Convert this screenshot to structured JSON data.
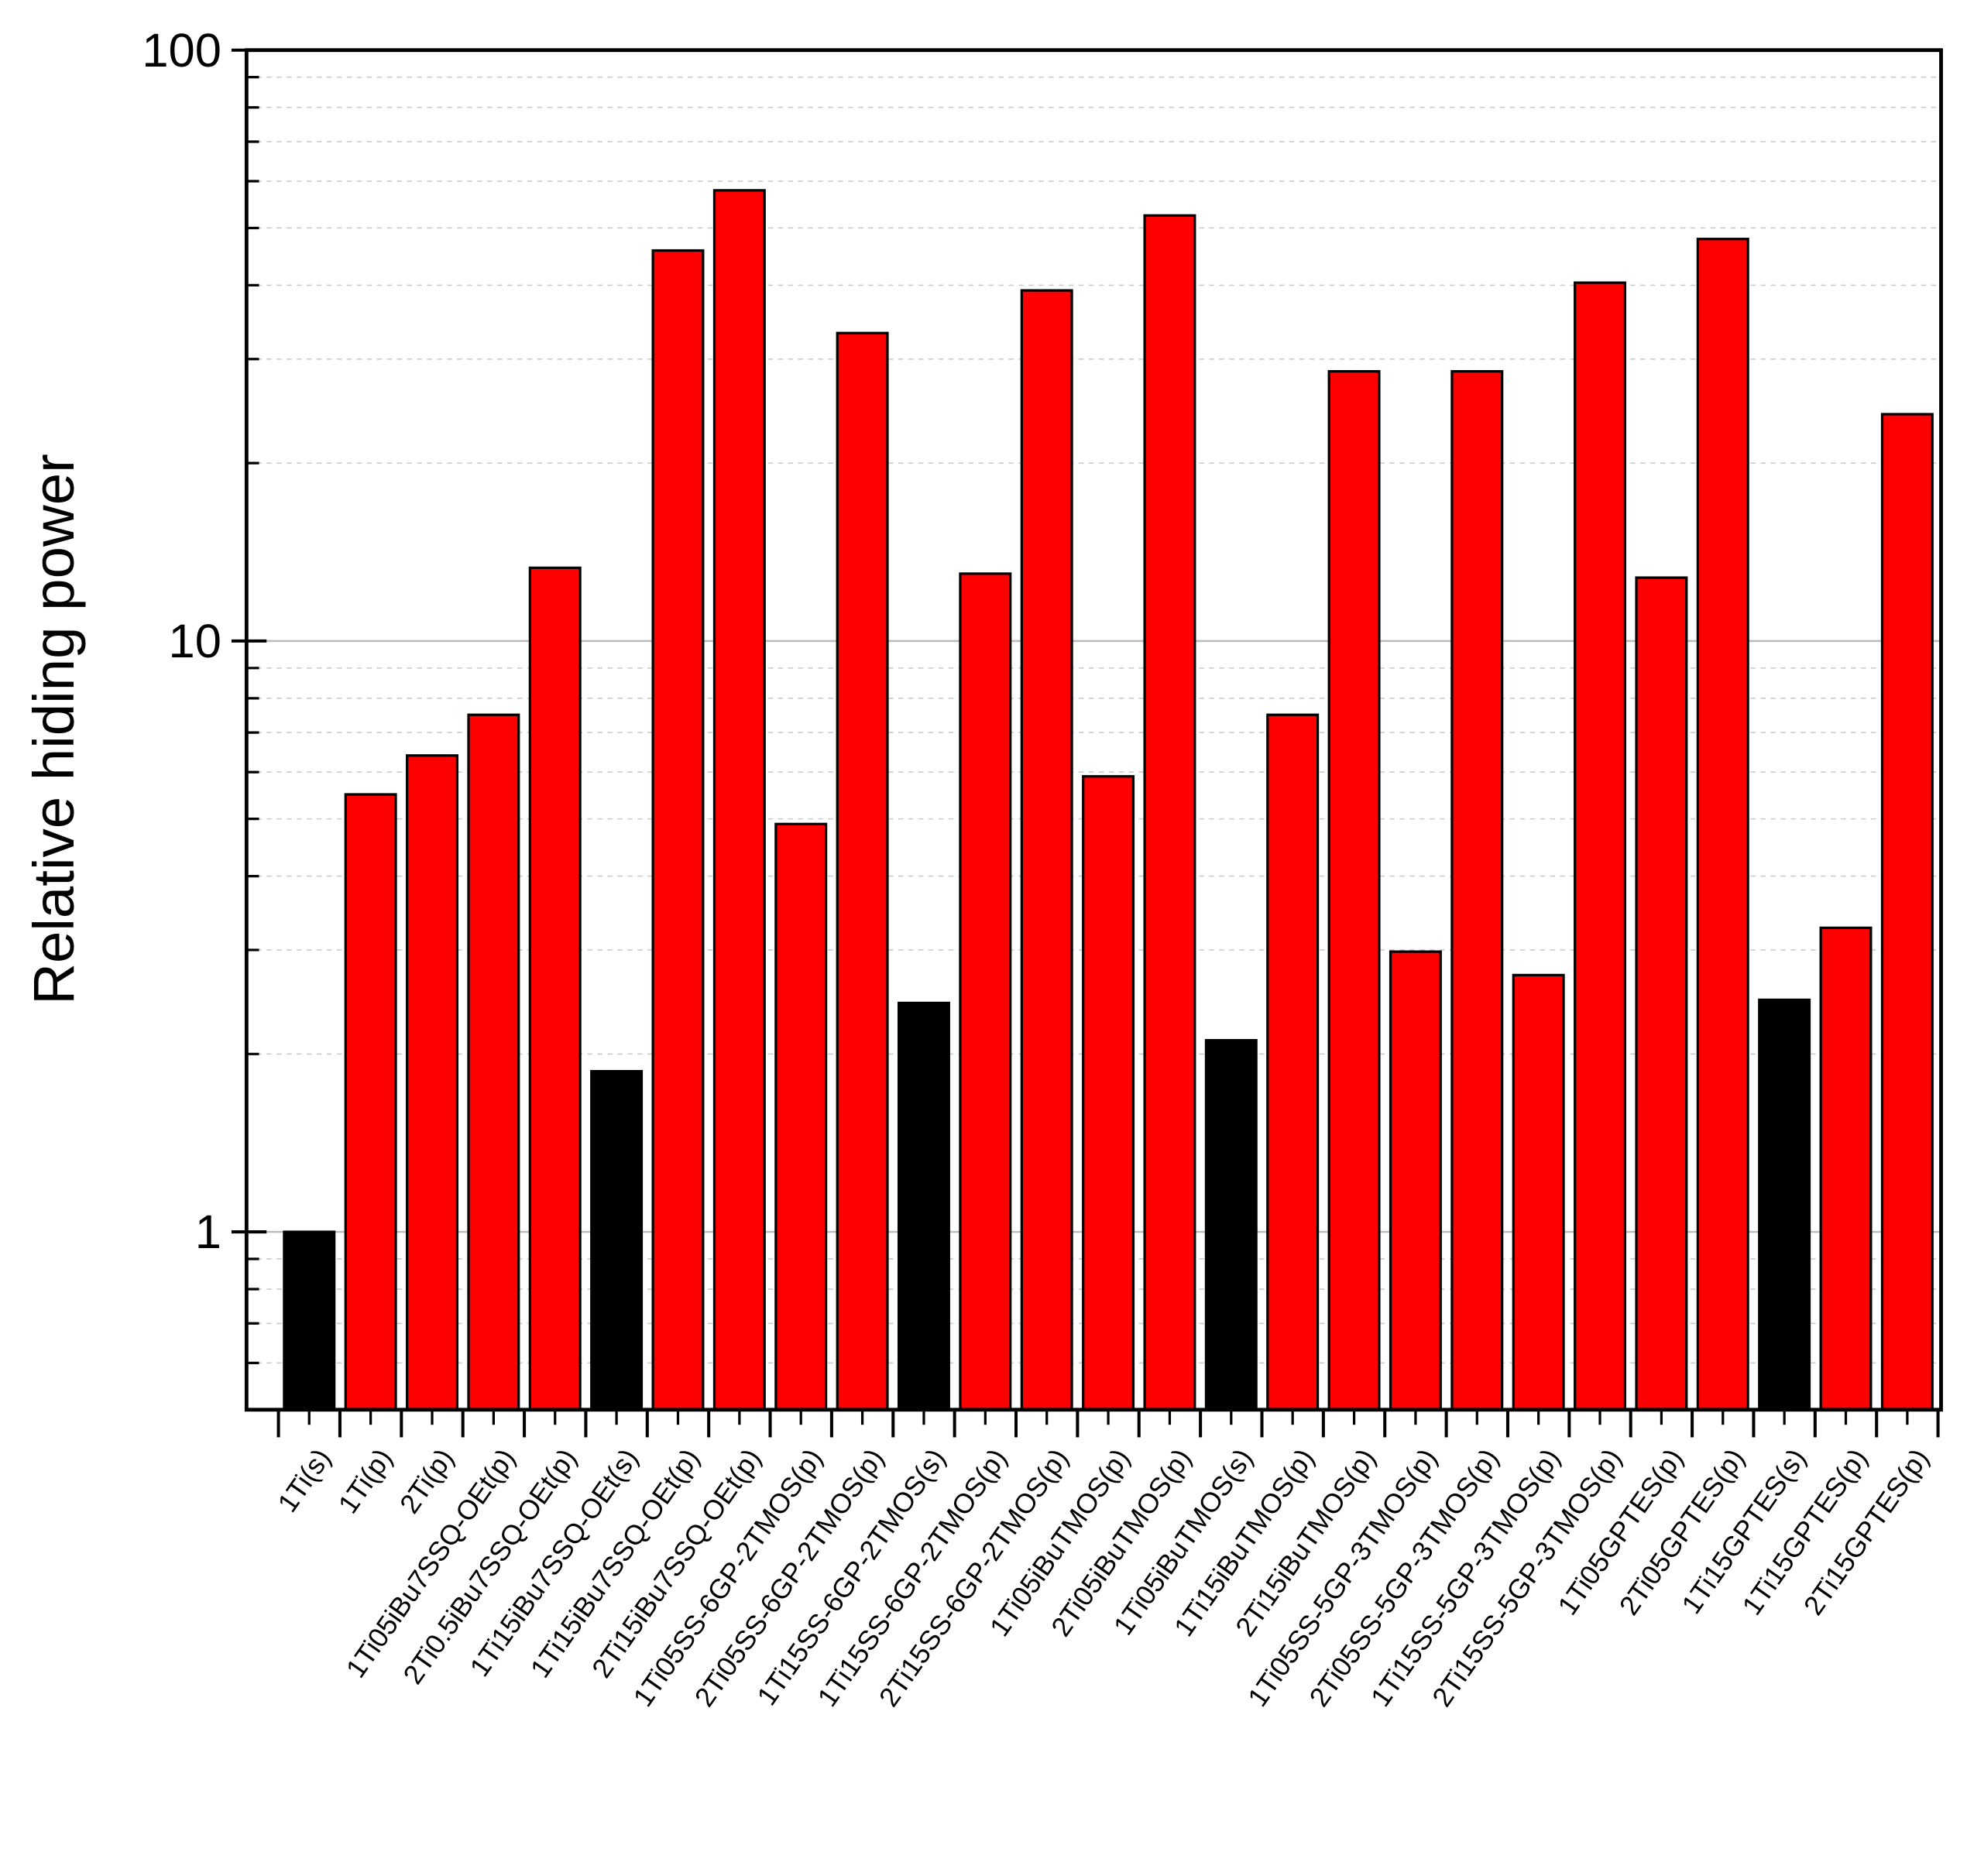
{
  "chart_data": {
    "type": "bar",
    "ylabel": "Relative hiding power",
    "categories": [
      "1Ti(s)",
      "1Ti(p)",
      "2Ti(p)",
      "1Ti05iBu7SSQ-OEt(p)",
      "2Ti0.5iBu7SSQ-OEt(p)",
      "1Ti15iBu7SSQ-OEt(s)",
      "1Ti15iBu7SSQ-OEt(p)",
      "2Ti15iBu7SSQ-OEt(p)",
      "1Ti05SS-6GP-2TMOS(p)",
      "2Ti05SS-6GP-2TMOS(p)",
      "1Ti15SS-6GP-2TMOS(s)",
      "1Ti15SS-6GP-2TMOS(p)",
      "2Ti15SS-6GP-2TMOS(p)",
      "1Ti05iBuTMOS(p)",
      "2Ti05iBuTMOS(p)",
      "1Ti05iBuTMOS(s)",
      "1Ti15iBuTMOS(p)",
      "2Ti15iBuTMOS(p)",
      "1Ti05SS-5GP-3TMOS(p)",
      "2Ti05SS-5GP-3TMOS(p)",
      "1Ti15SS-5GP-3TMOS(p)",
      "2Ti15SS-5GP-3TMOS(p)",
      "1Ti05GPTES(p)",
      "2Ti05GPTES(p)",
      "1Ti15GPTES(s)",
      "1Ti15GPTES(p)",
      "2Ti15GPTES(p)"
    ],
    "values": [
      1,
      5.5,
      6.4,
      7.5,
      13.3,
      1.87,
      45.8,
      57.9,
      4.9,
      33.2,
      2.44,
      13.0,
      39.2,
      5.9,
      52.5,
      2.11,
      7.5,
      28.6,
      2.98,
      28.6,
      2.72,
      40.4,
      12.8,
      47.9,
      2.47,
      3.27,
      24.2
    ],
    "colors": [
      "#000000",
      "#ff0000",
      "#ff0000",
      "#ff0000",
      "#ff0000",
      "#000000",
      "#ff0000",
      "#ff0000",
      "#ff0000",
      "#ff0000",
      "#000000",
      "#ff0000",
      "#ff0000",
      "#ff0000",
      "#ff0000",
      "#000000",
      "#ff0000",
      "#ff0000",
      "#ff0000",
      "#ff0000",
      "#ff0000",
      "#ff0000",
      "#ff0000",
      "#ff0000",
      "#000000",
      "#ff0000",
      "#ff0000"
    ],
    "log_y": true,
    "ylim": [
      0.5,
      100
    ],
    "yticks": [
      1,
      10,
      100
    ],
    "grid": true
  }
}
